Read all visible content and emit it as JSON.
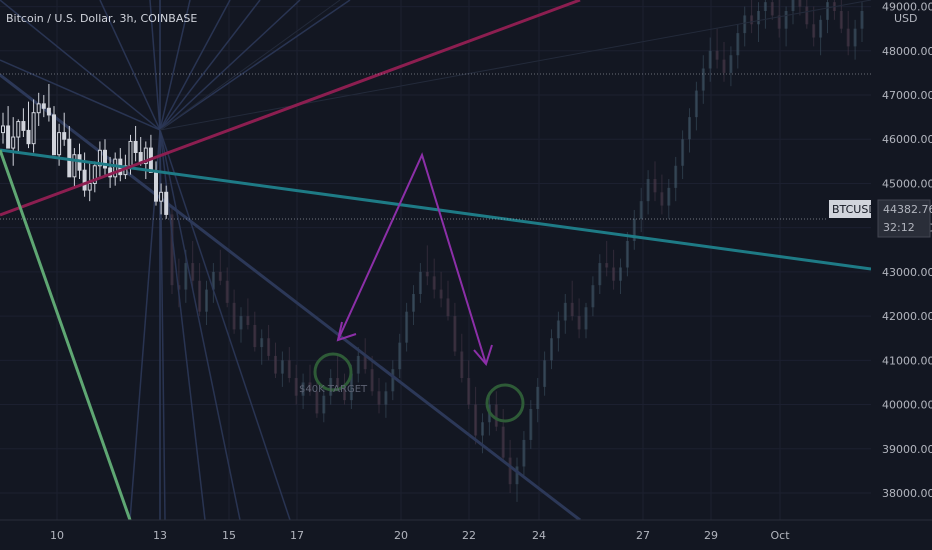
{
  "header": {
    "title": "Bitcoin / U.S. Dollar, 3h, COINBASE",
    "currency": "USD"
  },
  "price_tag": {
    "symbol": "BTCUSD",
    "price": "44382.76",
    "countdown": "32:12"
  },
  "annotation": {
    "text": "$40K TARGET"
  },
  "colors": {
    "background": "#131722",
    "bull": "#26a69a",
    "bear": "#ef5350",
    "teal_line": "#1e7b86",
    "magenta_line": "#8c1e50",
    "green_line": "#5fa773",
    "fan_lines": "#2c3858",
    "arrow": "#8c2fa8",
    "circle": "#2e5b37"
  },
  "chart_data": {
    "type": "candlestick",
    "title": "Bitcoin / U.S. Dollar, 3h, COINBASE",
    "ylim": [
      37400,
      49100
    ],
    "y_ticks": [
      "38000.00",
      "39000.00",
      "40000.00",
      "41000.00",
      "42000.00",
      "43000.00",
      "44000.00",
      "45000.00",
      "46000.00",
      "47000.00",
      "48000.00",
      "49000.00"
    ],
    "x_tick_labels": [
      "10",
      "13",
      "15",
      "17",
      "20",
      "22",
      "24",
      "27",
      "29",
      "Oct"
    ],
    "last_price": 44382.76,
    "highlighted_candles": [
      [
        46150,
        46600,
        45900,
        46300
      ],
      [
        46300,
        46750,
        45950,
        45800
      ],
      [
        45800,
        46500,
        45400,
        46050
      ],
      [
        46050,
        46450,
        45700,
        46400
      ],
      [
        46400,
        46700,
        46050,
        46200
      ],
      [
        46200,
        46850,
        45800,
        45900
      ],
      [
        45900,
        46900,
        45700,
        46600
      ],
      [
        46600,
        47050,
        46300,
        46800
      ],
      [
        46800,
        47000,
        46500,
        46700
      ],
      [
        46700,
        47250,
        46400,
        46550
      ],
      [
        46550,
        46750,
        45800,
        45650
      ],
      [
        45650,
        46350,
        45400,
        46150
      ],
      [
        46150,
        46600,
        45850,
        46000
      ],
      [
        46000,
        46300,
        45200,
        45150
      ],
      [
        45150,
        45800,
        44900,
        45650
      ],
      [
        45650,
        45900,
        45100,
        45300
      ],
      [
        45300,
        45700,
        44700,
        44850
      ],
      [
        44850,
        45450,
        44600,
        45000
      ],
      [
        45000,
        45500,
        44800,
        45400
      ],
      [
        45400,
        45950,
        45150,
        45750
      ],
      [
        45750,
        46000,
        45200,
        45350
      ],
      [
        45350,
        45600,
        44900,
        45150
      ],
      [
        45150,
        45700,
        44950,
        45550
      ],
      [
        45550,
        45800,
        45050,
        45200
      ],
      [
        45200,
        45650,
        45100,
        45400
      ],
      [
        45400,
        46100,
        45200,
        45950
      ],
      [
        45950,
        46300,
        45500,
        45700
      ],
      [
        45700,
        46050,
        45400,
        45450
      ],
      [
        45450,
        45950,
        45100,
        45800
      ],
      [
        45800,
        46100,
        45450,
        45250
      ],
      [
        45250,
        45500,
        44500,
        44600
      ],
      [
        44600,
        45000,
        44300,
        44800
      ],
      [
        44800,
        44950,
        44200,
        44300
      ]
    ],
    "faded_candles": [
      [
        44300,
        44500,
        42500,
        42700
      ],
      [
        42700,
        43300,
        42200,
        42600
      ],
      [
        42600,
        43500,
        42300,
        43200
      ],
      [
        43200,
        43700,
        42600,
        42800
      ],
      [
        42800,
        43200,
        42000,
        42100
      ],
      [
        42100,
        42800,
        41800,
        42600
      ],
      [
        42600,
        43200,
        42300,
        43000
      ],
      [
        43000,
        43500,
        42700,
        42800
      ],
      [
        42800,
        43100,
        42200,
        42300
      ],
      [
        42300,
        42600,
        41600,
        41700
      ],
      [
        41700,
        42200,
        41400,
        42000
      ],
      [
        42000,
        42400,
        41700,
        41800
      ],
      [
        41800,
        42100,
        41200,
        41300
      ],
      [
        41300,
        41700,
        40900,
        41500
      ],
      [
        41500,
        41800,
        41000,
        41100
      ],
      [
        41100,
        41400,
        40600,
        40700
      ],
      [
        40700,
        41200,
        40400,
        41000
      ],
      [
        41000,
        41300,
        40500,
        40600
      ],
      [
        40600,
        40900,
        40000,
        40200
      ],
      [
        40200,
        40700,
        39900,
        40500
      ],
      [
        40500,
        40900,
        40200,
        40300
      ],
      [
        40300,
        40600,
        39700,
        39800
      ],
      [
        39800,
        40400,
        39600,
        40200
      ],
      [
        40200,
        40800,
        40000,
        40600
      ],
      [
        40600,
        41100,
        40300,
        40400
      ],
      [
        40400,
        40700,
        40000,
        40100
      ],
      [
        40100,
        40900,
        39900,
        40700
      ],
      [
        40700,
        41300,
        40500,
        41100
      ],
      [
        41100,
        41500,
        40700,
        40800
      ],
      [
        40800,
        41100,
        40200,
        40300
      ],
      [
        40300,
        40600,
        39800,
        40000
      ],
      [
        40000,
        40500,
        39700,
        40300
      ],
      [
        40300,
        41000,
        40100,
        40800
      ],
      [
        40800,
        41600,
        40600,
        41400
      ],
      [
        41400,
        42300,
        41200,
        42100
      ],
      [
        42100,
        42700,
        41800,
        42500
      ],
      [
        42500,
        43200,
        42300,
        43000
      ],
      [
        43000,
        43600,
        42700,
        42900
      ],
      [
        42900,
        43300,
        42400,
        42600
      ],
      [
        42600,
        43000,
        42200,
        42400
      ],
      [
        42400,
        42800,
        41900,
        42000
      ],
      [
        42000,
        42300,
        41100,
        41200
      ],
      [
        41200,
        41600,
        40500,
        40600
      ],
      [
        40600,
        41000,
        39900,
        40000
      ],
      [
        40000,
        40400,
        39100,
        39300
      ],
      [
        39300,
        39800,
        38900,
        39600
      ],
      [
        39600,
        40200,
        39300,
        40000
      ],
      [
        40000,
        40300,
        39400,
        39500
      ],
      [
        39500,
        39900,
        38700,
        38800
      ],
      [
        38800,
        39200,
        38000,
        38200
      ],
      [
        38200,
        38800,
        37800,
        38600
      ],
      [
        38600,
        39400,
        38400,
        39200
      ],
      [
        39200,
        40100,
        39000,
        39900
      ],
      [
        39900,
        40600,
        39600,
        40400
      ],
      [
        40400,
        41200,
        40200,
        41000
      ],
      [
        41000,
        41700,
        40800,
        41500
      ],
      [
        41500,
        42100,
        41200,
        41900
      ],
      [
        41900,
        42500,
        41600,
        42300
      ],
      [
        42300,
        42800,
        41900,
        42000
      ],
      [
        42000,
        42400,
        41500,
        41700
      ],
      [
        41700,
        42300,
        41500,
        42200
      ],
      [
        42200,
        42900,
        42000,
        42700
      ],
      [
        42700,
        43400,
        42500,
        43200
      ],
      [
        43200,
        43700,
        42900,
        43100
      ],
      [
        43100,
        43500,
        42600,
        42800
      ],
      [
        42800,
        43300,
        42500,
        43100
      ],
      [
        43100,
        43900,
        42900,
        43700
      ],
      [
        43700,
        44400,
        43500,
        44200
      ],
      [
        44200,
        44900,
        43900,
        44600
      ],
      [
        44600,
        45300,
        44300,
        45100
      ],
      [
        45100,
        45500,
        44600,
        44800
      ],
      [
        44800,
        45200,
        44300,
        44500
      ],
      [
        44500,
        45100,
        44200,
        44900
      ],
      [
        44900,
        45600,
        44600,
        45400
      ],
      [
        45400,
        46200,
        45100,
        46000
      ],
      [
        46000,
        46700,
        45700,
        46500
      ],
      [
        46500,
        47300,
        46200,
        47100
      ],
      [
        47100,
        47900,
        46800,
        47600
      ],
      [
        47600,
        48300,
        47300,
        48000
      ],
      [
        48000,
        48500,
        47600,
        47800
      ],
      [
        47800,
        48200,
        47300,
        47500
      ],
      [
        47500,
        48100,
        47200,
        47900
      ],
      [
        47900,
        48600,
        47600,
        48400
      ],
      [
        48400,
        49000,
        48100,
        48800
      ],
      [
        48800,
        49300,
        48400,
        48600
      ],
      [
        48600,
        49100,
        48200,
        48900
      ],
      [
        48900,
        49400,
        48500,
        49100
      ],
      [
        49100,
        49500,
        48700,
        48800
      ],
      [
        48800,
        49200,
        48300,
        48500
      ],
      [
        48500,
        49000,
        48100,
        48900
      ],
      [
        48900,
        49400,
        48600,
        49200
      ],
      [
        49200,
        49600,
        48800,
        49000
      ],
      [
        49000,
        49400,
        48500,
        48600
      ],
      [
        48600,
        49000,
        48100,
        48300
      ],
      [
        48300,
        48800,
        47900,
        48700
      ],
      [
        48700,
        49300,
        48400,
        49100
      ],
      [
        49100,
        49500,
        48700,
        48900
      ],
      [
        48900,
        49300,
        48400,
        48500
      ],
      [
        48500,
        48900,
        47900,
        48100
      ],
      [
        48100,
        48700,
        47800,
        48500
      ],
      [
        48500,
        49100,
        48200,
        48900
      ]
    ]
  }
}
